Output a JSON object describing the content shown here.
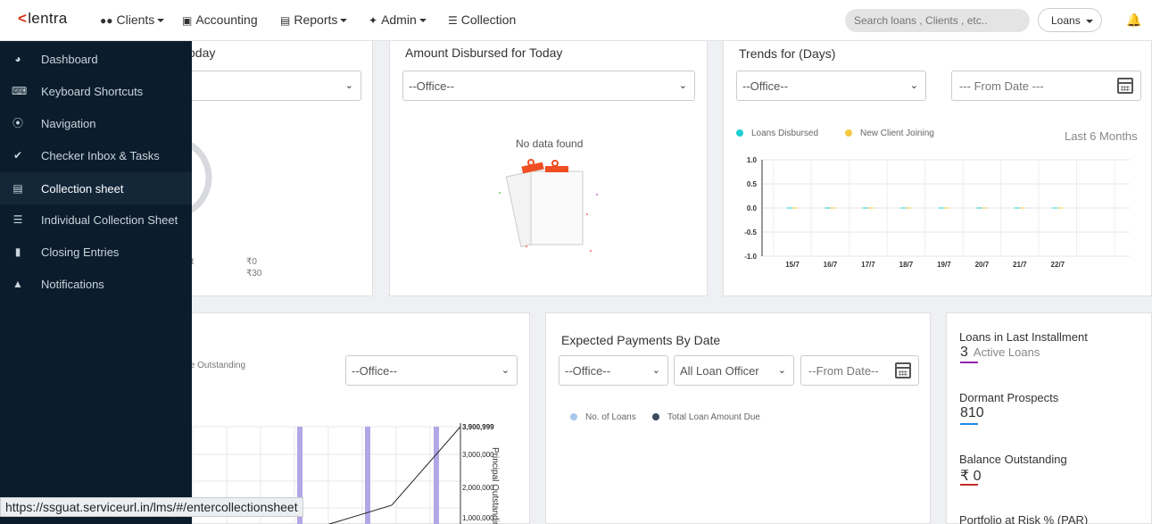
{
  "header": {
    "logo": "lentra",
    "nav": [
      {
        "label": "Clients"
      },
      {
        "label": "Accounting"
      },
      {
        "label": "Reports"
      },
      {
        "label": "Admin"
      },
      {
        "label": "Collection"
      }
    ],
    "search_placeholder": "Search loans , Clients , etc..",
    "loans_dropdown": "Loans"
  },
  "sidebar": {
    "items": [
      {
        "label": "Dashboard",
        "icon": "dashboard-icon"
      },
      {
        "label": "Keyboard Shortcuts",
        "icon": "keyboard-icon"
      },
      {
        "label": "Navigation",
        "icon": "compass-icon"
      },
      {
        "label": "Checker Inbox & Tasks",
        "icon": "check-icon"
      },
      {
        "label": "Collection sheet",
        "icon": "document-icon"
      },
      {
        "label": "Individual Collection Sheet",
        "icon": "list-icon"
      },
      {
        "label": "Closing Entries",
        "icon": "folder-icon"
      },
      {
        "label": "Notifications",
        "icon": "bell-icon"
      }
    ]
  },
  "card1": {
    "title_partial": "oday",
    "legend_partial": "nt",
    "values": [
      "₹0",
      "₹30"
    ]
  },
  "card2": {
    "title": "Amount Disbursed for Today",
    "office_select": "--Office--",
    "empty_text": "No data found"
  },
  "card3": {
    "title": "Trends for (Days)",
    "office_select": "--Office--",
    "from_date": "--- From Date ---",
    "period": "Last 6 Months",
    "colors": {
      "loans": "#1ccfd0",
      "clients": "#f5c842"
    },
    "chart_data": {
      "type": "line",
      "categories": [
        "15/7",
        "16/7",
        "17/7",
        "18/7",
        "19/7",
        "20/7",
        "21/7",
        "22/7"
      ],
      "series": [
        {
          "name": "Loans Disbursed",
          "values": [
            0,
            0,
            0,
            0,
            0,
            0,
            0,
            0
          ]
        },
        {
          "name": "New Client Joining",
          "values": [
            0,
            0,
            0,
            0,
            0,
            0,
            0,
            0
          ]
        }
      ],
      "ylim": [
        -1.0,
        1.0
      ],
      "yticks": [
        "1.0",
        "0.5",
        "0.0",
        "-0.5",
        "-1.0"
      ]
    }
  },
  "card4": {
    "legend_partial": "ple Outstanding",
    "office_select": "--Office--",
    "axis_label": "Principal Outstanding",
    "chart_data": {
      "type": "bar",
      "yticks": [
        "3,900,999",
        "3,000,000",
        "2,000,000",
        "1,000,000"
      ]
    }
  },
  "card5": {
    "title": "Expected Payments By Date",
    "office_select": "--Office--",
    "officer_select": "All Loan Officer",
    "from_date": "--From Date--",
    "legend": [
      {
        "label": "No. of Loans",
        "color": "#a9c8ef"
      },
      {
        "label": "Total Loan Amount Due",
        "color": "#3b4a5e"
      }
    ]
  },
  "card6": {
    "stats": [
      {
        "label": "Loans in Last Installment",
        "value": "3",
        "sub": "Active Loans",
        "color": "#8e24aa"
      },
      {
        "label": "Dormant Prospects",
        "value": "810",
        "sub": "",
        "color": "#1e88e5"
      },
      {
        "label": "Balance Outstanding",
        "value": "₹ 0",
        "sub": "",
        "color": "#c62828"
      }
    ],
    "partial_label": "Portfolio at Risk % (PAR)"
  },
  "status_url": "https://ssguat.serviceurl.in/lms/#/entercollectionsheet"
}
